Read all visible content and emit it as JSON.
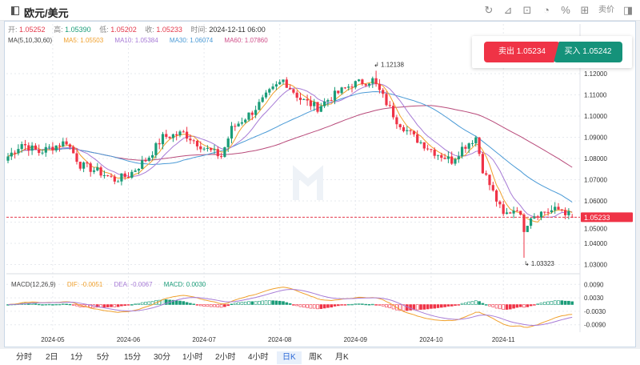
{
  "header": {
    "title": "欧元/美元",
    "tools": [
      "refresh-icon",
      "draw-icon",
      "indicator-icon",
      "pie-icon",
      "percent-icon",
      "grid-icon"
    ],
    "tool_glyphs": [
      "↻",
      "⊿",
      "⊡",
      "◔",
      "%",
      "⊞"
    ],
    "price_mode": "卖价"
  },
  "ohlc": {
    "open_label": "开:",
    "open": "1.05252",
    "high_label": "高:",
    "high": "1.05390",
    "low_label": "低:",
    "low": "1.05202",
    "close_label": "收:",
    "close": "1.05233",
    "time_label": "时间:",
    "time": "2024-12-11 06:00"
  },
  "ma": {
    "label": "MA(5,10,30,60)",
    "ma5": "MA5: 1.05503",
    "ma10": "MA10: 1.05384",
    "ma30": "MA30: 1.06074",
    "ma60": "MA60: 1.07860"
  },
  "macd": {
    "label": "MACD(12,26,9)",
    "dif": "DIF: -0.0051",
    "dea": "DEA: -0.0067",
    "macd": "MACD: 0.0030"
  },
  "trade": {
    "sell": "卖出 1.05234",
    "buy": "买入 1.05242"
  },
  "colors": {
    "up": "#1a9c78",
    "down": "#ef3346",
    "ma5": "#f0a02c",
    "ma10": "#a77bd6",
    "ma30": "#4a9ad6",
    "ma60": "#b84a7a"
  },
  "chart_data": {
    "type": "candlestick",
    "symbol": "EUR/USD",
    "timeframe": "日K",
    "price_ticks": [
      "1.12000",
      "1.11000",
      "1.10000",
      "1.09000",
      "1.08000",
      "1.07000",
      "1.06000",
      "1.05000",
      "1.04000",
      "1.03000"
    ],
    "price_tick_values": [
      1.12,
      1.11,
      1.1,
      1.09,
      1.08,
      1.07,
      1.06,
      1.05,
      1.04,
      1.03
    ],
    "macd_ticks": [
      "0.0090",
      "0.0030",
      "-0.0030",
      "-0.0090"
    ],
    "macd_tick_values": [
      0.009,
      0.003,
      -0.003,
      -0.009
    ],
    "date_ticks": [
      "2024-05",
      "2024-06",
      "2024-07",
      "2024-08",
      "2024-09",
      "2024-10",
      "2024-11"
    ],
    "date_tick_index": [
      13,
      35,
      57,
      79,
      101,
      123,
      144
    ],
    "current_price": "1.05233",
    "current_value": 1.05233,
    "max_label": "1.12138",
    "max_value": 1.12138,
    "min_label": "1.03323",
    "min_value": 1.03323,
    "close_anchors": [
      [
        0,
        1.081
      ],
      [
        4,
        1.087
      ],
      [
        9,
        1.083
      ],
      [
        17,
        1.088
      ],
      [
        21,
        1.077
      ],
      [
        26,
        1.074
      ],
      [
        31,
        1.07
      ],
      [
        35,
        1.072
      ],
      [
        41,
        1.081
      ],
      [
        45,
        1.09
      ],
      [
        51,
        1.092
      ],
      [
        57,
        1.085
      ],
      [
        62,
        1.081
      ],
      [
        65,
        1.094
      ],
      [
        71,
        1.102
      ],
      [
        76,
        1.111
      ],
      [
        80,
        1.117
      ],
      [
        85,
        1.108
      ],
      [
        90,
        1.104
      ],
      [
        94,
        1.109
      ],
      [
        100,
        1.115
      ],
      [
        106,
        1.117
      ],
      [
        109,
        1.109
      ],
      [
        113,
        1.098
      ],
      [
        118,
        1.09
      ],
      [
        124,
        1.083
      ],
      [
        129,
        1.079
      ],
      [
        132,
        1.085
      ],
      [
        136,
        1.09
      ],
      [
        138,
        1.075
      ],
      [
        141,
        1.064
      ],
      [
        144,
        1.053
      ],
      [
        148,
        1.057
      ],
      [
        150,
        1.047
      ],
      [
        152,
        1.053
      ],
      [
        156,
        1.055
      ],
      [
        161,
        1.056
      ],
      [
        164,
        1.0523
      ]
    ]
  },
  "bottom_tabs": [
    "分时",
    "2日",
    "1分",
    "5分",
    "15分",
    "30分",
    "1小时",
    "2小时",
    "4小时",
    "日K",
    "周K",
    "月K"
  ],
  "selected_tab": "日K"
}
